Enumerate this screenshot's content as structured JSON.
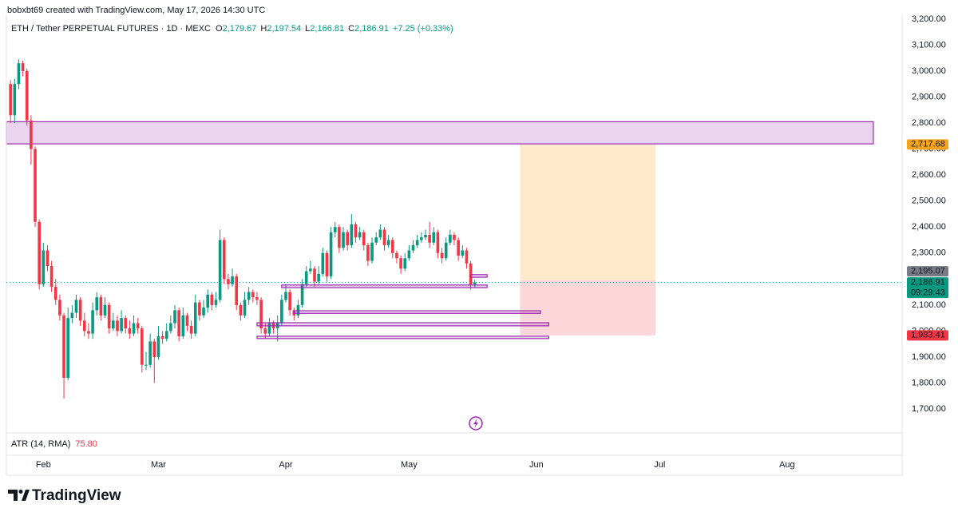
{
  "header": {
    "author_line": "bobxbt69 created with TradingView.com, May 17, 2026 14:30 UTC"
  },
  "chart_data": {
    "type": "candlestick",
    "title": "ETH / Tether PERPETUAL FUTURES · 1D · MEXC",
    "ohlc_legend": [
      {
        "key": "O",
        "label": "2,179.67"
      },
      {
        "key": "H",
        "label": "2,197.54"
      },
      {
        "key": "L",
        "label": "2,166.81"
      },
      {
        "key": "C",
        "label": "2,186.91"
      }
    ],
    "change": "+7.25 (+0.33%)",
    "x": [
      0,
      1,
      2,
      3,
      4,
      5,
      6,
      7,
      8,
      9,
      10,
      11,
      12,
      13,
      14,
      15,
      16,
      17,
      18,
      19,
      20,
      21,
      22,
      23,
      24,
      25,
      26,
      27,
      28,
      29,
      30,
      31,
      32,
      33,
      34,
      35,
      36,
      37,
      38,
      39,
      40,
      41,
      42,
      43,
      44,
      45,
      46,
      47,
      48,
      49,
      50,
      51,
      52,
      53,
      54,
      55,
      56,
      57,
      58,
      59,
      60,
      61,
      62,
      63,
      64,
      65,
      66,
      67,
      68,
      69,
      70,
      71,
      72,
      73,
      74,
      75,
      76,
      77,
      78,
      79,
      80,
      81,
      82,
      83,
      84,
      85,
      86,
      87,
      88,
      89,
      90,
      91,
      92,
      93,
      94,
      95,
      96,
      97,
      98,
      99,
      100,
      101,
      102,
      103,
      104,
      105,
      106,
      107,
      108,
      109,
      110,
      111,
      112,
      113
    ],
    "open": [
      2950,
      2830,
      2950,
      3030,
      3000,
      2810,
      2700,
      2420,
      2180,
      2310,
      2250,
      2170,
      2120,
      2060,
      1820,
      2050,
      2070,
      2120,
      2040,
      2000,
      1990,
      2080,
      2130,
      2060,
      2100,
      2010,
      2040,
      2000,
      2050,
      2010,
      1990,
      2030,
      2010,
      1870,
      1870,
      1960,
      1900,
      1980,
      1970,
      2000,
      2030,
      2080,
      1980,
      2060,
      2020,
      1990,
      2110,
      2060,
      2090,
      2140,
      2100,
      2120,
      2350,
      2200,
      2180,
      2210,
      2100,
      2060,
      2120,
      2150,
      2130,
      2120,
      2010,
      1990,
      2030,
      2010,
      2030,
      2120,
      2150,
      2080,
      2060,
      2100,
      2180,
      2230,
      2240,
      2190,
      2220,
      2300,
      2210,
      2380,
      2400,
      2320,
      2380,
      2330,
      2410,
      2360,
      2380,
      2330,
      2270,
      2340,
      2360,
      2390,
      2330,
      2350,
      2300,
      2280,
      2240,
      2280,
      2310,
      2330,
      2350,
      2360,
      2370,
      2340,
      2380,
      2300,
      2280,
      2340,
      2370,
      2350,
      2290,
      2310,
      2260,
      2179.67
    ],
    "high": [
      2965,
      2970,
      3045,
      3040,
      3010,
      2830,
      2710,
      2430,
      2340,
      2330,
      2270,
      2200,
      2140,
      2070,
      2090,
      2100,
      2140,
      2130,
      2070,
      2030,
      2110,
      2150,
      2140,
      2130,
      2110,
      2070,
      2060,
      2080,
      2060,
      2040,
      2060,
      2050,
      2020,
      1920,
      1990,
      1970,
      2020,
      2000,
      2030,
      2060,
      2100,
      2090,
      2090,
      2070,
      2040,
      2140,
      2120,
      2120,
      2160,
      2150,
      2150,
      2390,
      2360,
      2220,
      2240,
      2220,
      2110,
      2150,
      2170,
      2160,
      2150,
      2130,
      2030,
      2050,
      2040,
      2060,
      2140,
      2180,
      2160,
      2090,
      2120,
      2200,
      2250,
      2270,
      2250,
      2250,
      2320,
      2310,
      2400,
      2420,
      2410,
      2400,
      2390,
      2450,
      2420,
      2400,
      2390,
      2340,
      2360,
      2380,
      2410,
      2400,
      2370,
      2360,
      2310,
      2290,
      2300,
      2330,
      2350,
      2370,
      2380,
      2390,
      2420,
      2400,
      2390,
      2320,
      2360,
      2390,
      2380,
      2360,
      2330,
      2320,
      2270,
      2197.54
    ],
    "low": [
      2800,
      2800,
      2930,
      2980,
      2790,
      2640,
      2400,
      2160,
      2170,
      2230,
      2150,
      2100,
      2040,
      1740,
      1810,
      2030,
      2050,
      2020,
      1980,
      1970,
      1970,
      2060,
      2040,
      2050,
      1990,
      2000,
      1980,
      1990,
      1990,
      1970,
      1980,
      1990,
      1840,
      1850,
      1860,
      1800,
      1890,
      1950,
      1960,
      1990,
      2010,
      1960,
      1970,
      2000,
      1970,
      1980,
      2040,
      2050,
      2070,
      2080,
      2090,
      2110,
      2180,
      2160,
      2170,
      2080,
      2040,
      2050,
      2100,
      2110,
      2100,
      1990,
      1970,
      1980,
      1990,
      1960,
      2020,
      2110,
      2060,
      2040,
      2050,
      2090,
      2170,
      2220,
      2170,
      2180,
      2210,
      2190,
      2200,
      2360,
      2300,
      2310,
      2310,
      2320,
      2340,
      2350,
      2310,
      2250,
      2260,
      2330,
      2350,
      2310,
      2320,
      2280,
      2260,
      2220,
      2230,
      2270,
      2300,
      2320,
      2340,
      2350,
      2320,
      2330,
      2280,
      2260,
      2270,
      2330,
      2330,
      2270,
      2280,
      2240,
      2160,
      2166.81
    ],
    "close": [
      2830,
      2950,
      3030,
      3000,
      2810,
      2700,
      2420,
      2180,
      2310,
      2250,
      2170,
      2120,
      2060,
      1820,
      2050,
      2070,
      2120,
      2040,
      2000,
      1990,
      2080,
      2130,
      2060,
      2100,
      2010,
      2040,
      2000,
      2050,
      2010,
      1990,
      2030,
      2010,
      1870,
      1870,
      1960,
      1900,
      1980,
      1970,
      2000,
      2030,
      2080,
      1980,
      2060,
      2020,
      1990,
      2110,
      2060,
      2090,
      2140,
      2100,
      2120,
      2350,
      2200,
      2180,
      2210,
      2100,
      2060,
      2120,
      2150,
      2130,
      2120,
      2010,
      1990,
      2030,
      2010,
      2030,
      2120,
      2150,
      2080,
      2060,
      2100,
      2180,
      2230,
      2240,
      2190,
      2220,
      2300,
      2210,
      2380,
      2400,
      2320,
      2380,
      2330,
      2410,
      2360,
      2380,
      2330,
      2270,
      2340,
      2360,
      2390,
      2330,
      2350,
      2300,
      2280,
      2240,
      2280,
      2310,
      2330,
      2350,
      2360,
      2370,
      2340,
      2380,
      2300,
      2280,
      2340,
      2370,
      2350,
      2290,
      2310,
      2260,
      2179.67,
      2186.91
    ],
    "up_color": "#089981",
    "down_color": "#f23645",
    "xlim": [
      -1,
      217
    ],
    "xticks": [
      {
        "value": 8,
        "label": "Feb"
      },
      {
        "value": 36,
        "label": "Mar"
      },
      {
        "value": 67,
        "label": "Apr"
      },
      {
        "value": 97,
        "label": "May"
      },
      {
        "value": 128,
        "label": "Jun"
      },
      {
        "value": 158,
        "label": "Jul"
      },
      {
        "value": 189,
        "label": "Aug"
      }
    ],
    "ylim": [
      1608,
      3218
    ],
    "yticks": [
      {
        "value": 1700,
        "label": "1,700.00"
      },
      {
        "value": 1800,
        "label": "1,800.00"
      },
      {
        "value": 1900,
        "label": "1,900.00"
      },
      {
        "value": 2000,
        "label": "2,000.00"
      },
      {
        "value": 2100,
        "label": "2,100.00"
      },
      {
        "value": 2300,
        "label": "2,300.00"
      },
      {
        "value": 2400,
        "label": "2,400.00"
      },
      {
        "value": 2500,
        "label": "2,500.00"
      },
      {
        "value": 2600,
        "label": "2,600.00"
      },
      {
        "value": 2700,
        "label": "2,700.00"
      },
      {
        "value": 2800,
        "label": "2,800.00"
      },
      {
        "value": 2900,
        "label": "2,900.00"
      },
      {
        "value": 3000,
        "label": "3,000.00"
      },
      {
        "value": 3100,
        "label": "3,100.00"
      },
      {
        "value": 3200,
        "label": "3,200.00"
      }
    ],
    "grid": false,
    "zones": [
      {
        "y": [
          2720,
          2805
        ],
        "x": [
          -1,
          210
        ]
      },
      {
        "y": [
          2167,
          2177
        ],
        "x": [
          66,
          116
        ]
      },
      {
        "y": [
          2068,
          2078
        ],
        "x": [
          69,
          129
        ]
      },
      {
        "y": [
          2020,
          2032
        ],
        "x": [
          60,
          131
        ]
      },
      {
        "y": [
          1971,
          1980
        ],
        "x": [
          60,
          131
        ]
      },
      {
        "y": [
          2207,
          2217
        ],
        "x": [
          112,
          116
        ]
      }
    ],
    "zone_color": "#9c27b0",
    "position": {
      "entry": 2195.07,
      "target": 2717.68,
      "stop": 1983.41,
      "x": [
        124,
        157
      ]
    },
    "price_badges": [
      {
        "value": 2717.68,
        "label": "2,717.68",
        "color": "#f7a21b"
      },
      {
        "value": 2195.07,
        "label": "2,195.07",
        "color": "#787b86"
      },
      {
        "value": 2186.91,
        "label": "2,186.91",
        "color": "#089981",
        "countdown": "09:29:43"
      },
      {
        "value": 1983.41,
        "label": "1,983.41",
        "color": "#f23645"
      }
    ],
    "indicator": {
      "label": "ATR (14, RMA)",
      "value": 75.8,
      "value_label": "75.80"
    }
  },
  "footer": {
    "brand": "TradingView"
  }
}
